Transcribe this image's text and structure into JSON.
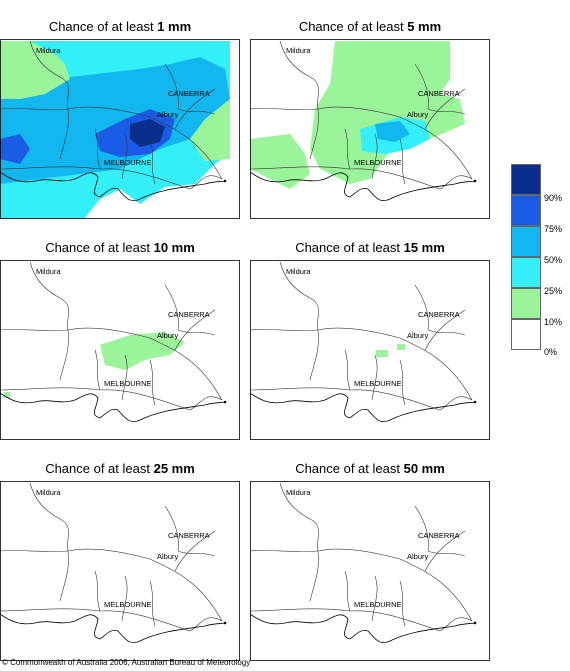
{
  "panels": [
    {
      "title_prefix": "Chance of at least ",
      "amount": "1 mm"
    },
    {
      "title_prefix": "Chance of at least ",
      "amount": "5 mm"
    },
    {
      "title_prefix": "Chance of at least ",
      "amount": "10 mm"
    },
    {
      "title_prefix": "Chance of at least ",
      "amount": "15 mm"
    },
    {
      "title_prefix": "Chance of at least ",
      "amount": "25 mm"
    },
    {
      "title_prefix": "Chance of at least ",
      "amount": "50 mm"
    }
  ],
  "places": {
    "mildura": "Mildura",
    "canberra": "CANBERRA",
    "albury": "Albury",
    "melbourne": "MELBOURNE"
  },
  "legend": {
    "labels": [
      "90%",
      "75%",
      "50%",
      "25%",
      "10%",
      "0%"
    ],
    "colors": [
      "#0a2e8c",
      "#1a5ce6",
      "#12b7f0",
      "#33f0f8",
      "#9af59a",
      "#ffffff"
    ]
  },
  "copyright": "© Commonwealth of Australia 2006, Australian Bureau of Meteorology"
}
